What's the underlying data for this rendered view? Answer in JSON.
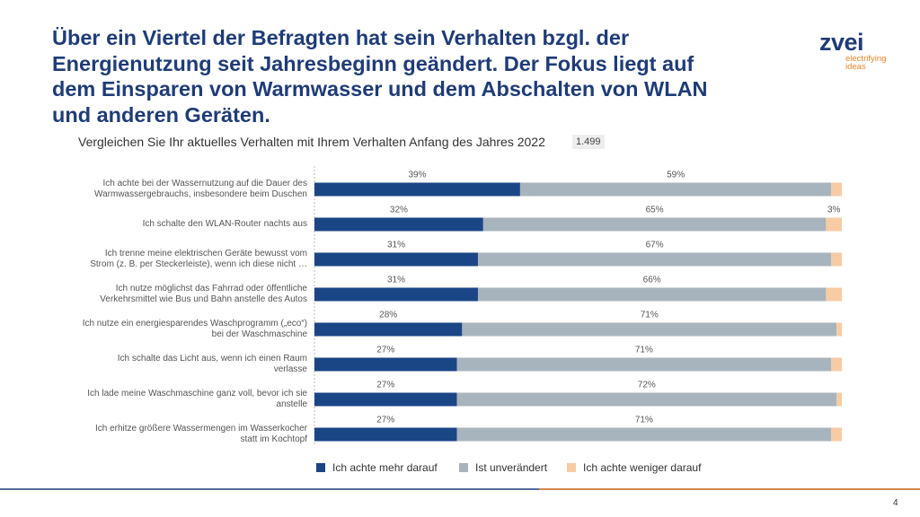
{
  "header": {
    "title": "Über ein Viertel der Befragten hat sein Verhalten bzgl. der\nEnergienutzung seit Jahresbeginn geändert. Der Fokus liegt auf\ndem Einsparen von Warmwasser und dem Abschalten von WLAN\nund anderen Geräten.",
    "logo": "zvei",
    "tagline": "electrifying\nideas"
  },
  "chart_data": {
    "type": "stacked-bar-horizontal",
    "subtitle": "Vergleichen Sie Ihr aktuelles Verhalten mit Ihrem Verhalten Anfang des Jahres 2022",
    "sample_size": "1.499",
    "categories": [
      "Ich achte bei der Wassernutzung auf die Dauer des\nWarmwassergebrauchs, insbesondere beim Duschen",
      "Ich schalte den WLAN-Router nachts aus",
      "Ich trenne meine elektrischen Geräte bewusst vom\nStrom (z. B. per Steckerleiste), wenn ich diese nicht …",
      "Ich nutze möglichst das Fahrrad oder öffentliche\nVerkehrsmittel wie Bus und Bahn anstelle des Autos",
      "Ich nutze ein energiesparendes Waschprogramm („eco“)\nbei der Waschmaschine",
      "Ich schalte das Licht aus, wenn ich einen Raum\nverlasse",
      "Ich lade meine Waschmaschine ganz voll, bevor ich sie\nanstelle",
      "Ich erhitze größere Wassermengen im Wasserkocher\nstatt im Kochtopf"
    ],
    "xlim": [
      0,
      100
    ],
    "series": [
      {
        "name": "Ich achte mehr darauf",
        "color": "#1b4686",
        "values": [
          39,
          32,
          31,
          31,
          28,
          27,
          27,
          27
        ],
        "value_labels": [
          "39%",
          "32%",
          "31%",
          "31%",
          "28%",
          "27%",
          "27%",
          "27%"
        ]
      },
      {
        "name": "Ist unverändert",
        "color": "#a8b4bd",
        "values": [
          59,
          65,
          67,
          66,
          71,
          71,
          72,
          71
        ],
        "value_labels": [
          "59%",
          "65%",
          "67%",
          "66%",
          "71%",
          "71%",
          "72%",
          "71%"
        ]
      },
      {
        "name": "Ich achte weniger darauf",
        "color": "#f7cba3",
        "values": [
          2,
          3,
          2,
          3,
          1,
          2,
          1,
          2
        ],
        "value_labels": [
          null,
          "3%",
          null,
          null,
          null,
          null,
          null,
          null
        ]
      }
    ]
  },
  "footer": {
    "page": "4"
  }
}
